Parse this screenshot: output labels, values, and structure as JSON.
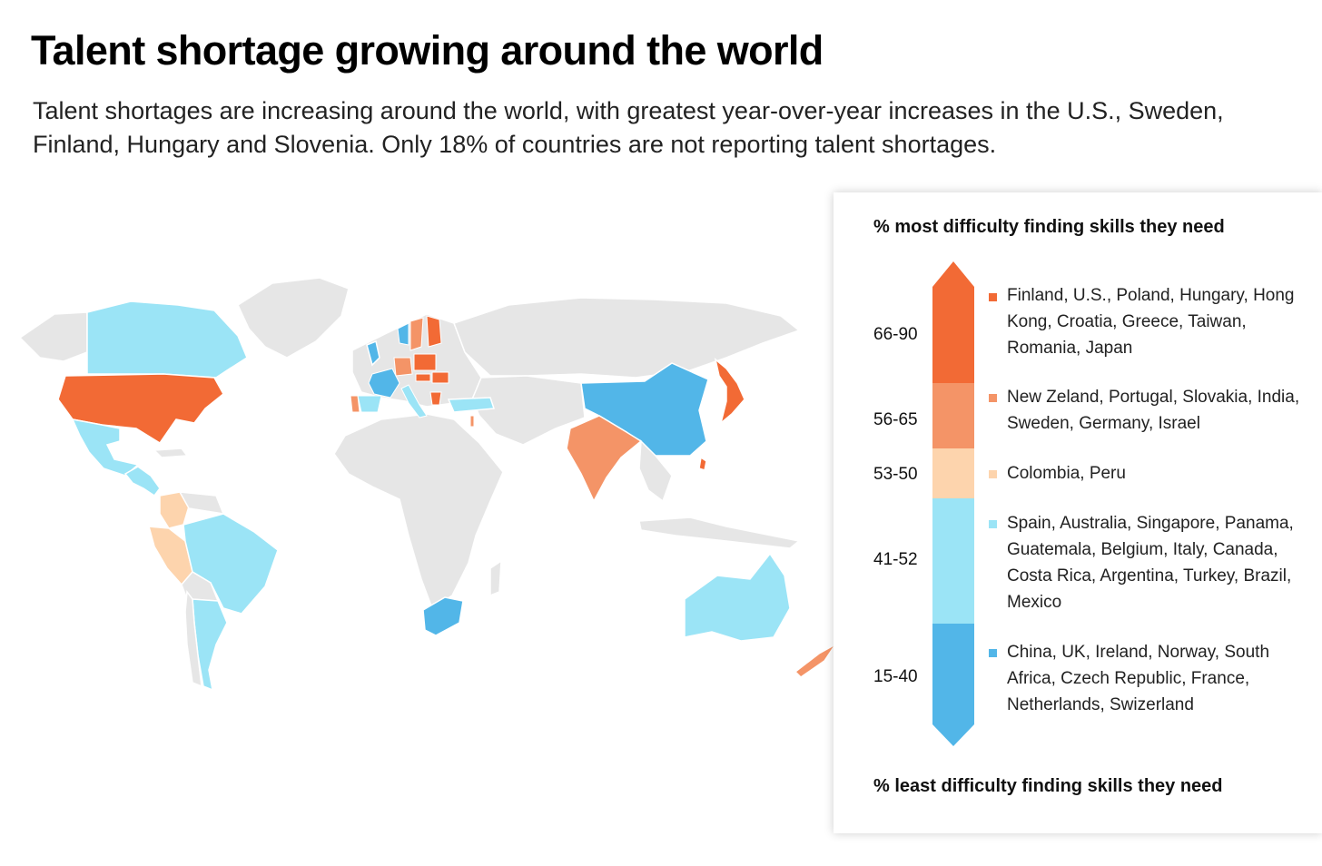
{
  "title": "Talent shortage growing around the world",
  "subtitle": "Talent shortages are increasing around the world, with greatest year-over-year increases in the U.S., Sweden, Finland, Hungary and Slovenia. Only 18% of countries are not reporting talent shortages.",
  "colors": {
    "tier_66_90": "#f26a35",
    "tier_56_65": "#f49467",
    "tier_53_50": "#fdd4ad",
    "tier_41_52": "#9be4f6",
    "tier_15_40": "#52b6e8",
    "no_data": "#e6e6e6"
  },
  "legend": {
    "top_label": "% most difficulty finding skills they need",
    "bottom_label": "% least difficulty finding skills they need",
    "tiers": [
      {
        "range": "66-90",
        "countries": "Finland, U.S., Poland, Hungary, Hong Kong, Croatia, Greece, Taiwan, Romania, Japan",
        "color": "#f26a35"
      },
      {
        "range": "56-65",
        "countries": "New Zeland, Portugal, Slovakia, India, Sweden, Germany, Israel",
        "color": "#f49467"
      },
      {
        "range": "53-50",
        "countries": "Colombia, Peru",
        "color": "#fdd4ad"
      },
      {
        "range": "41-52",
        "countries": "Spain, Australia, Singapore, Panama, Guatemala, Belgium, Italy, Canada, Costa Rica, Argentina, Turkey, Brazil, Mexico",
        "color": "#9be4f6"
      },
      {
        "range": "15-40",
        "countries": "China, UK, Ireland, Norway, South Africa, Czech Republic, France, Netherlands, Swizerland",
        "color": "#52b6e8"
      }
    ]
  }
}
